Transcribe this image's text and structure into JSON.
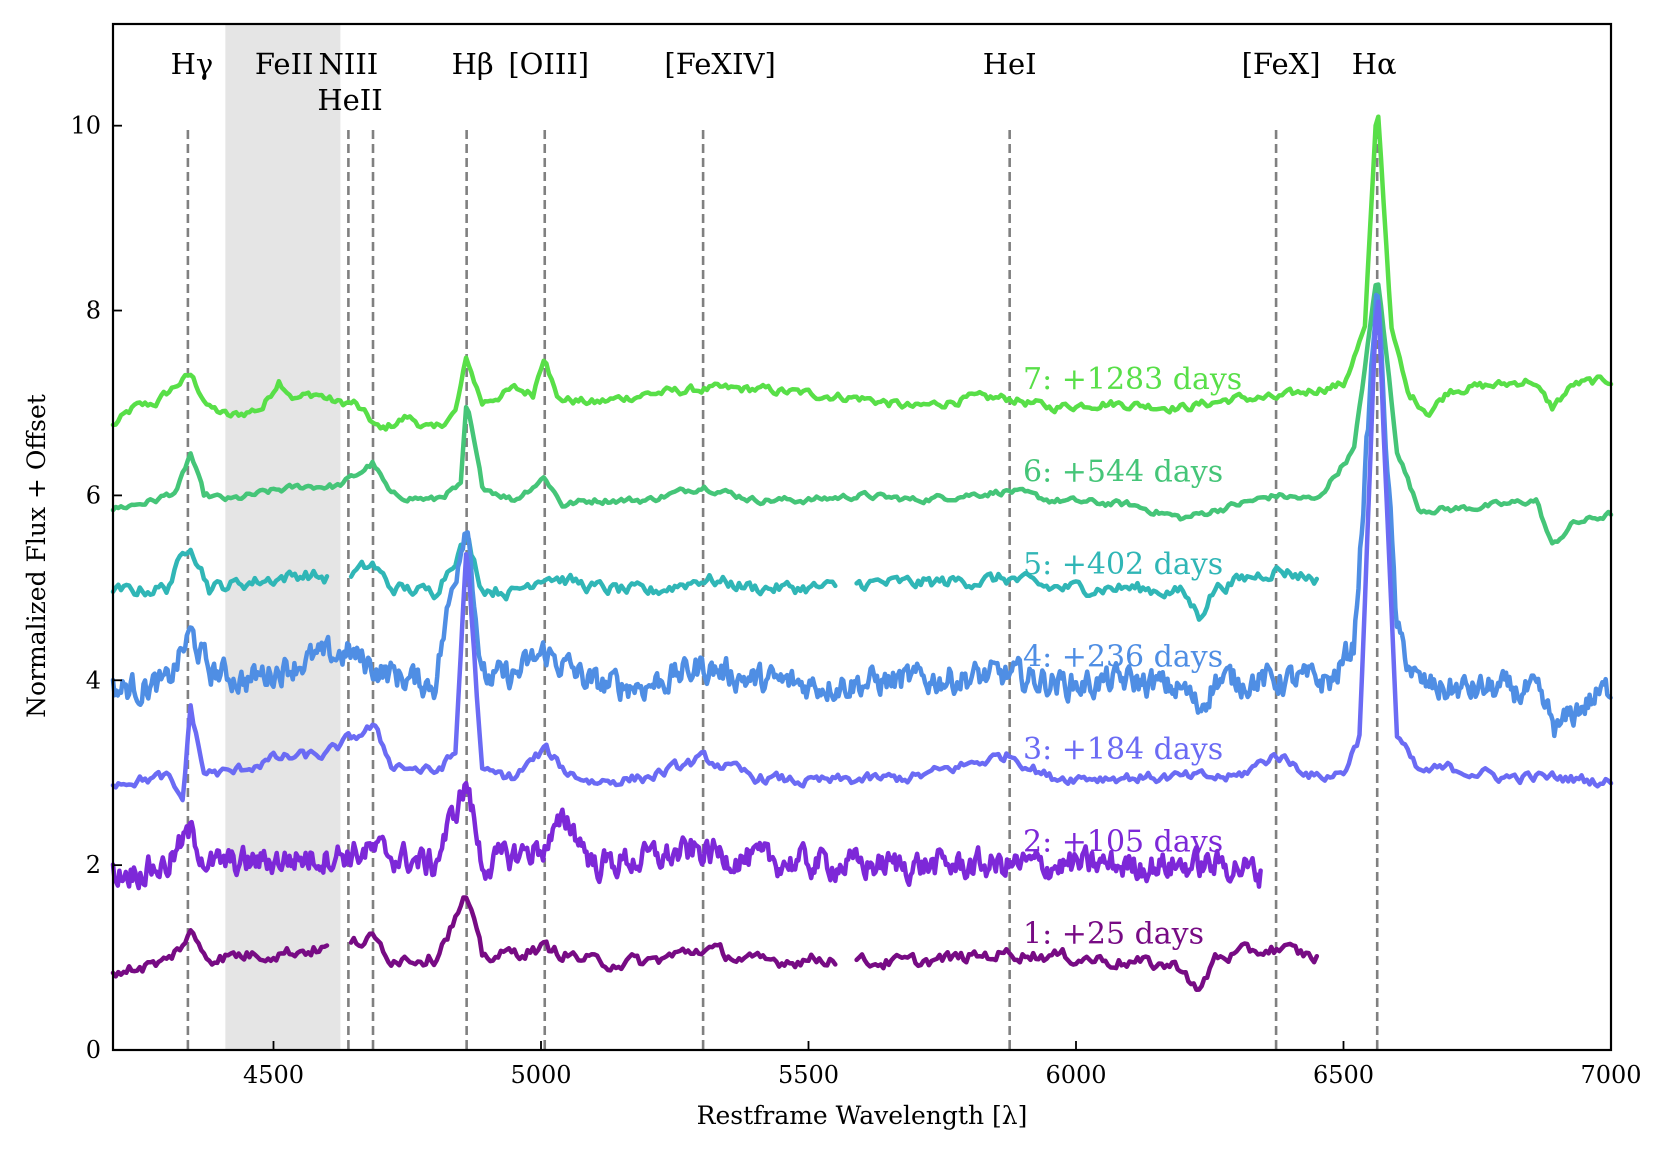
{
  "chart_data": {
    "type": "line",
    "xlabel": "Restframe Wavelength [λ]",
    "ylabel": "Normalized Flux + Offset",
    "xlim": [
      4200,
      7000
    ],
    "ylim": [
      0,
      11.1
    ],
    "x_ticks": [
      4500,
      5000,
      5500,
      6000,
      6500,
      7000
    ],
    "y_ticks": [
      0,
      2,
      4,
      6,
      8,
      10
    ],
    "grid": false,
    "shaded_regions": [
      {
        "x0": 4410,
        "x1": 4625,
        "color": "#e5e5e5"
      }
    ],
    "line_markers": [
      {
        "label": "Hγ",
        "x": 4340
      },
      {
        "label": "FeII",
        "x": 4520
      },
      {
        "label": "NIII",
        "x": 4640
      },
      {
        "label": "HeII",
        "x": 4686
      },
      {
        "label": "Hβ",
        "x": 4861
      },
      {
        "label": "[OIII]",
        "x": 5007
      },
      {
        "label": "[FeXIV]",
        "x": 5303
      },
      {
        "label": "HeI",
        "x": 5876
      },
      {
        "label": "[FeX]",
        "x": 6374
      },
      {
        "label": "Hα",
        "x": 6563
      }
    ],
    "series": [
      {
        "name": "7: +1283 days",
        "color": "#58df48",
        "offset": 7,
        "noise": 0.04,
        "segments": [
          [
            4200,
            7000
          ]
        ],
        "points": [
          [
            4200,
            -0.25
          ],
          [
            4240,
            -0.05
          ],
          [
            4280,
            0.0
          ],
          [
            4320,
            0.2
          ],
          [
            4345,
            0.3
          ],
          [
            4380,
            -0.05
          ],
          [
            4420,
            -0.15
          ],
          [
            4480,
            -0.05
          ],
          [
            4510,
            0.25
          ],
          [
            4540,
            0.05
          ],
          [
            4580,
            0.1
          ],
          [
            4620,
            0.0
          ],
          [
            4650,
            0.0
          ],
          [
            4700,
            -0.3
          ],
          [
            4750,
            -0.15
          ],
          [
            4800,
            -0.3
          ],
          [
            4840,
            -0.1
          ],
          [
            4861,
            0.48
          ],
          [
            4890,
            0.0
          ],
          [
            4950,
            0.15
          ],
          [
            4985,
            0.1
          ],
          [
            5007,
            0.55
          ],
          [
            5030,
            0.05
          ],
          [
            5100,
            0.0
          ],
          [
            5200,
            0.1
          ],
          [
            5303,
            0.15
          ],
          [
            5400,
            0.15
          ],
          [
            5500,
            0.1
          ],
          [
            5600,
            0.05
          ],
          [
            5700,
            -0.05
          ],
          [
            5800,
            0.05
          ],
          [
            5876,
            0.05
          ],
          [
            5950,
            -0.05
          ],
          [
            6050,
            0.0
          ],
          [
            6200,
            -0.05
          ],
          [
            6300,
            0.05
          ],
          [
            6374,
            0.05
          ],
          [
            6450,
            0.15
          ],
          [
            6500,
            0.2
          ],
          [
            6540,
            0.8
          ],
          [
            6563,
            3.3
          ],
          [
            6590,
            0.8
          ],
          [
            6620,
            0.1
          ],
          [
            6660,
            -0.1
          ],
          [
            6700,
            0.15
          ],
          [
            6800,
            0.2
          ],
          [
            6850,
            0.25
          ],
          [
            6890,
            -0.05
          ],
          [
            6930,
            0.2
          ],
          [
            7000,
            0.25
          ]
        ]
      },
      {
        "name": "6: +544 days",
        "color": "#45c578",
        "offset": 6,
        "noise": 0.03,
        "segments": [
          [
            4200,
            7000
          ]
        ],
        "points": [
          [
            4200,
            -0.15
          ],
          [
            4280,
            -0.05
          ],
          [
            4320,
            0.05
          ],
          [
            4345,
            0.45
          ],
          [
            4370,
            0.0
          ],
          [
            4420,
            -0.05
          ],
          [
            4500,
            0.05
          ],
          [
            4560,
            0.1
          ],
          [
            4620,
            0.1
          ],
          [
            4650,
            0.2
          ],
          [
            4686,
            0.35
          ],
          [
            4720,
            0.0
          ],
          [
            4800,
            -0.05
          ],
          [
            4850,
            0.1
          ],
          [
            4861,
            1.0
          ],
          [
            4890,
            0.1
          ],
          [
            4950,
            -0.05
          ],
          [
            5007,
            0.2
          ],
          [
            5040,
            -0.1
          ],
          [
            5100,
            -0.05
          ],
          [
            5200,
            -0.05
          ],
          [
            5303,
            0.1
          ],
          [
            5400,
            -0.05
          ],
          [
            5500,
            -0.05
          ],
          [
            5600,
            0.0
          ],
          [
            5700,
            -0.05
          ],
          [
            5876,
            0.05
          ],
          [
            5950,
            -0.05
          ],
          [
            6100,
            -0.1
          ],
          [
            6200,
            -0.25
          ],
          [
            6300,
            -0.1
          ],
          [
            6374,
            0.0
          ],
          [
            6450,
            -0.05
          ],
          [
            6520,
            0.5
          ],
          [
            6563,
            2.4
          ],
          [
            6600,
            0.5
          ],
          [
            6640,
            -0.15
          ],
          [
            6700,
            -0.15
          ],
          [
            6800,
            -0.1
          ],
          [
            6860,
            -0.05
          ],
          [
            6890,
            -0.55
          ],
          [
            6930,
            -0.3
          ],
          [
            6970,
            -0.25
          ],
          [
            7000,
            -0.2
          ]
        ]
      },
      {
        "name": "5: +402 days",
        "color": "#30b6b6",
        "offset": 5,
        "noise": 0.06,
        "segments": [
          [
            4200,
            4600
          ],
          [
            4645,
            5550
          ],
          [
            5590,
            6450
          ]
        ],
        "points": [
          [
            4200,
            -0.05
          ],
          [
            4300,
            0.0
          ],
          [
            4345,
            0.5
          ],
          [
            4380,
            0.0
          ],
          [
            4500,
            0.1
          ],
          [
            4560,
            0.15
          ],
          [
            4600,
            0.1
          ],
          [
            4645,
            0.15
          ],
          [
            4686,
            0.25
          ],
          [
            4720,
            0.0
          ],
          [
            4800,
            -0.05
          ],
          [
            4861,
            0.55
          ],
          [
            4890,
            0.0
          ],
          [
            4950,
            -0.05
          ],
          [
            5007,
            0.15
          ],
          [
            5100,
            0.0
          ],
          [
            5200,
            -0.05
          ],
          [
            5303,
            0.1
          ],
          [
            5400,
            0.0
          ],
          [
            5550,
            0.0
          ],
          [
            5590,
            0.05
          ],
          [
            5700,
            0.05
          ],
          [
            5876,
            0.1
          ],
          [
            5950,
            0.0
          ],
          [
            6100,
            0.0
          ],
          [
            6200,
            -0.05
          ],
          [
            6230,
            -0.3
          ],
          [
            6260,
            0.0
          ],
          [
            6374,
            0.2
          ],
          [
            6450,
            0.1
          ]
        ]
      },
      {
        "name": "4: +236 days",
        "color": "#4f8ee4",
        "offset": 4,
        "noise": 0.13,
        "segments": [
          [
            4200,
            7000
          ]
        ],
        "points": [
          [
            4200,
            -0.1
          ],
          [
            4300,
            -0.05
          ],
          [
            4345,
            0.5
          ],
          [
            4380,
            0.1
          ],
          [
            4450,
            0.0
          ],
          [
            4550,
            0.2
          ],
          [
            4640,
            0.3
          ],
          [
            4700,
            0.1
          ],
          [
            4800,
            -0.05
          ],
          [
            4861,
            1.8
          ],
          [
            4890,
            0.0
          ],
          [
            4950,
            0.05
          ],
          [
            5007,
            0.3
          ],
          [
            5100,
            -0.05
          ],
          [
            5200,
            -0.05
          ],
          [
            5303,
            0.15
          ],
          [
            5400,
            0.0
          ],
          [
            5500,
            -0.05
          ],
          [
            5700,
            0.0
          ],
          [
            5876,
            0.05
          ],
          [
            6000,
            -0.05
          ],
          [
            6100,
            0.0
          ],
          [
            6200,
            -0.1
          ],
          [
            6230,
            -0.3
          ],
          [
            6260,
            0.0
          ],
          [
            6400,
            0.0
          ],
          [
            6480,
            0.0
          ],
          [
            6520,
            0.4
          ],
          [
            6563,
            4.3
          ],
          [
            6600,
            0.5
          ],
          [
            6640,
            -0.05
          ],
          [
            6700,
            -0.1
          ],
          [
            6800,
            -0.1
          ],
          [
            6860,
            -0.15
          ],
          [
            6900,
            -0.55
          ],
          [
            6940,
            -0.3
          ],
          [
            6980,
            -0.15
          ],
          [
            7000,
            -0.1
          ]
        ]
      },
      {
        "name": "3: +184 days",
        "color": "#6b6bf4",
        "offset": 3,
        "noise": 0.05,
        "segments": [
          [
            4200,
            7000
          ]
        ],
        "points": [
          [
            4200,
            -0.1
          ],
          [
            4300,
            -0.05
          ],
          [
            4330,
            -0.3
          ],
          [
            4345,
            0.7
          ],
          [
            4370,
            0.0
          ],
          [
            4420,
            0.0
          ],
          [
            4500,
            0.15
          ],
          [
            4600,
            0.2
          ],
          [
            4640,
            0.35
          ],
          [
            4686,
            0.5
          ],
          [
            4720,
            0.1
          ],
          [
            4800,
            0.0
          ],
          [
            4840,
            0.2
          ],
          [
            4861,
            2.5
          ],
          [
            4890,
            0.0
          ],
          [
            4950,
            -0.05
          ],
          [
            5007,
            0.25
          ],
          [
            5050,
            0.0
          ],
          [
            5100,
            -0.1
          ],
          [
            5200,
            -0.05
          ],
          [
            5303,
            0.15
          ],
          [
            5400,
            -0.05
          ],
          [
            5500,
            -0.1
          ],
          [
            5700,
            -0.05
          ],
          [
            5876,
            0.2
          ],
          [
            5950,
            -0.05
          ],
          [
            6100,
            -0.05
          ],
          [
            6300,
            -0.05
          ],
          [
            6374,
            0.2
          ],
          [
            6450,
            -0.05
          ],
          [
            6500,
            0.0
          ],
          [
            6530,
            0.4
          ],
          [
            6563,
            5.3
          ],
          [
            6600,
            0.4
          ],
          [
            6640,
            0.0
          ],
          [
            6700,
            0.05
          ],
          [
            6800,
            -0.05
          ],
          [
            6900,
            -0.05
          ],
          [
            7000,
            -0.1
          ]
        ]
      },
      {
        "name": "2: +105 days",
        "color": "#7d28d8",
        "offset": 2,
        "noise": 0.13,
        "segments": [
          [
            4200,
            6345
          ]
        ],
        "points": [
          [
            4200,
            -0.1
          ],
          [
            4300,
            0.0
          ],
          [
            4345,
            0.35
          ],
          [
            4380,
            0.0
          ],
          [
            4500,
            0.05
          ],
          [
            4600,
            0.1
          ],
          [
            4686,
            0.15
          ],
          [
            4800,
            0.0
          ],
          [
            4861,
            0.9
          ],
          [
            4890,
            0.0
          ],
          [
            5007,
            0.2
          ],
          [
            5050,
            0.5
          ],
          [
            5100,
            0.0
          ],
          [
            5303,
            0.15
          ],
          [
            5400,
            0.05
          ],
          [
            5600,
            0.0
          ],
          [
            5800,
            0.0
          ],
          [
            5876,
            0.0
          ],
          [
            6000,
            0.0
          ],
          [
            6100,
            0.0
          ],
          [
            6300,
            0.0
          ],
          [
            6345,
            -0.1
          ]
        ]
      },
      {
        "name": "1: +25 days",
        "color": "#770b84",
        "offset": 1,
        "noise": 0.06,
        "segments": [
          [
            4200,
            4600
          ],
          [
            4645,
            5550
          ],
          [
            5590,
            6450
          ]
        ],
        "points": [
          [
            4200,
            -0.15
          ],
          [
            4300,
            -0.05
          ],
          [
            4345,
            0.25
          ],
          [
            4380,
            0.0
          ],
          [
            4500,
            0.05
          ],
          [
            4600,
            0.1
          ],
          [
            4645,
            0.15
          ],
          [
            4686,
            0.2
          ],
          [
            4720,
            0.0
          ],
          [
            4800,
            0.0
          ],
          [
            4861,
            0.65
          ],
          [
            4890,
            0.0
          ],
          [
            5007,
            0.1
          ],
          [
            5100,
            -0.05
          ],
          [
            5200,
            -0.05
          ],
          [
            5303,
            0.1
          ],
          [
            5400,
            -0.05
          ],
          [
            5550,
            0.0
          ],
          [
            5590,
            -0.05
          ],
          [
            5700,
            -0.05
          ],
          [
            5876,
            0.05
          ],
          [
            6000,
            0.0
          ],
          [
            6100,
            -0.05
          ],
          [
            6200,
            -0.1
          ],
          [
            6230,
            -0.4
          ],
          [
            6260,
            0.0
          ],
          [
            6374,
            0.1
          ],
          [
            6450,
            0.0
          ]
        ]
      }
    ]
  }
}
